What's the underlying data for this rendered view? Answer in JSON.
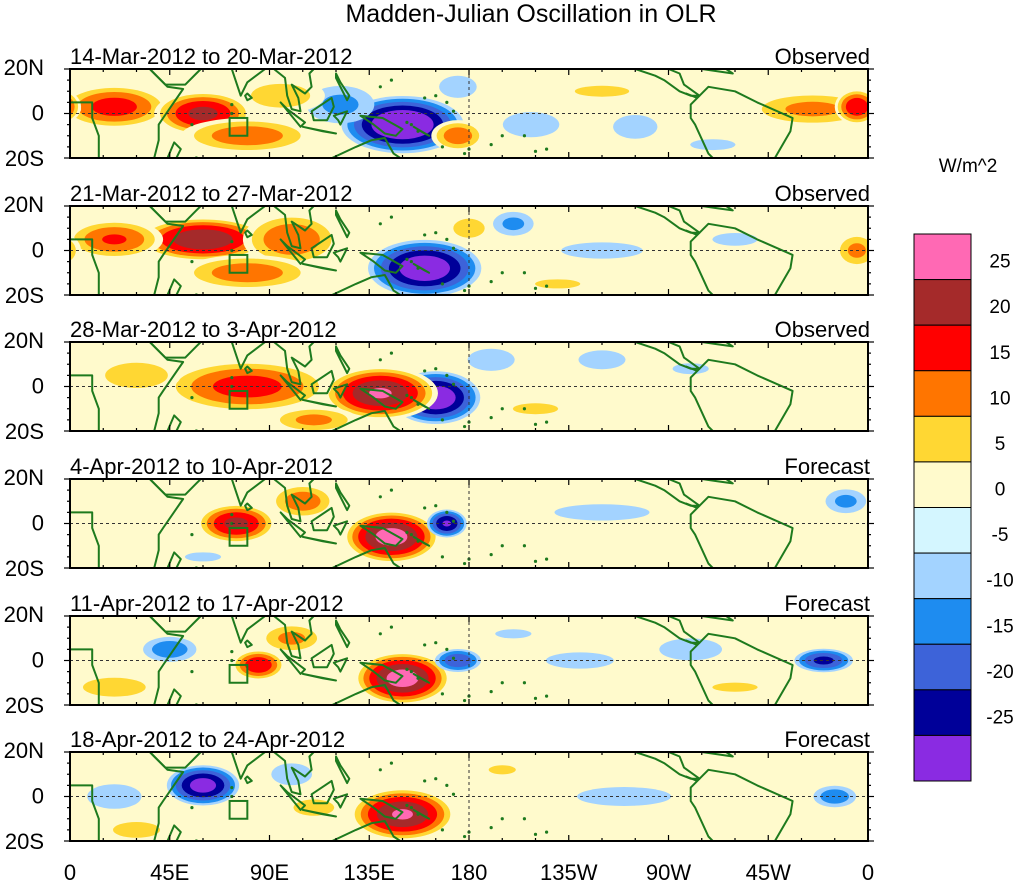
{
  "title": "Madden-Julian Oscillation in OLR",
  "units": "W/m^2",
  "panels": [
    {
      "period": "14-Mar-2012 to 20-Mar-2012",
      "kind": "Observed"
    },
    {
      "period": "21-Mar-2012 to 27-Mar-2012",
      "kind": "Observed"
    },
    {
      "period": "28-Mar-2012 to 3-Apr-2012",
      "kind": "Observed"
    },
    {
      "period": "4-Apr-2012 to 10-Apr-2012",
      "kind": "Forecast"
    },
    {
      "period": "11-Apr-2012 to 17-Apr-2012",
      "kind": "Forecast"
    },
    {
      "period": "18-Apr-2012 to 24-Apr-2012",
      "kind": "Forecast"
    }
  ],
  "lat_labels": [
    "20N",
    "0",
    "20S"
  ],
  "lon_labels": [
    "0",
    "45E",
    "90E",
    "135E",
    "180",
    "135W",
    "90W",
    "45W",
    "0"
  ],
  "colorbar": {
    "labels": [
      "25",
      "20",
      "15",
      "10",
      "5",
      "0",
      "-5",
      "-10",
      "-15",
      "-20",
      "-25"
    ],
    "colors": [
      "#ff69b4",
      "#a52a2a",
      "#ff0000",
      "#ff7500",
      "#ffd733",
      "#fffacc",
      "#d4f6ff",
      "#a3d3ff",
      "#1e8cf0",
      "#3d63d9",
      "#000099",
      "#8a2be2"
    ]
  },
  "colors": {
    "land_outline": "#1e7a1e",
    "frame": "#000000",
    "reference_line": "#333333"
  },
  "anomalies": [
    [
      {
        "lon": 150,
        "lat": -5,
        "v": -32,
        "rx": 30,
        "ry": 14
      },
      {
        "lon": 122,
        "lat": 4,
        "v": -12,
        "rx": 20,
        "ry": 11
      },
      {
        "lon": 175,
        "lat": 12,
        "v": -10,
        "rx": 12,
        "ry": 7
      },
      {
        "lon": 20,
        "lat": 3,
        "v": 18,
        "rx": 25,
        "ry": 10
      },
      {
        "lon": 60,
        "lat": 0,
        "v": 22,
        "rx": 22,
        "ry": 10
      },
      {
        "lon": 80,
        "lat": -10,
        "v": 14,
        "rx": 30,
        "ry": 8
      },
      {
        "lon": 95,
        "lat": 8,
        "v": 9,
        "rx": 20,
        "ry": 8
      },
      {
        "lon": 175,
        "lat": -10,
        "v": 14,
        "rx": 12,
        "ry": 7
      },
      {
        "lon": 208,
        "lat": -5,
        "v": -10,
        "rx": 18,
        "ry": 8
      },
      {
        "lon": 255,
        "lat": -6,
        "v": -9,
        "rx": 15,
        "ry": 8
      },
      {
        "lon": 335,
        "lat": 2,
        "v": 12,
        "rx": 30,
        "ry": 8
      },
      {
        "lon": 355,
        "lat": 3,
        "v": 20,
        "rx": 10,
        "ry": 8
      },
      {
        "lon": 240,
        "lat": 10,
        "v": 6,
        "rx": 30,
        "ry": 6
      },
      {
        "lon": 290,
        "lat": -14,
        "v": -6,
        "rx": 25,
        "ry": 6
      }
    ],
    [
      {
        "lon": 160,
        "lat": -8,
        "v": -30,
        "rx": 28,
        "ry": 14
      },
      {
        "lon": 200,
        "lat": 12,
        "v": -12,
        "rx": 12,
        "ry": 7
      },
      {
        "lon": 60,
        "lat": 5,
        "v": 25,
        "rx": 30,
        "ry": 10
      },
      {
        "lon": 20,
        "lat": 5,
        "v": 16,
        "rx": 22,
        "ry": 9
      },
      {
        "lon": 100,
        "lat": 5,
        "v": 15,
        "rx": 22,
        "ry": 12
      },
      {
        "lon": 80,
        "lat": -10,
        "v": 14,
        "rx": 30,
        "ry": 8
      },
      {
        "lon": 180,
        "lat": 10,
        "v": 10,
        "rx": 10,
        "ry": 6
      },
      {
        "lon": 240,
        "lat": 0,
        "v": -8,
        "rx": 30,
        "ry": 6
      },
      {
        "lon": 300,
        "lat": 5,
        "v": -6,
        "rx": 25,
        "ry": 7
      },
      {
        "lon": 355,
        "lat": 0,
        "v": 12,
        "rx": 10,
        "ry": 8
      },
      {
        "lon": 220,
        "lat": -15,
        "v": 6,
        "rx": 25,
        "ry": 5
      }
    ],
    [
      {
        "lon": 165,
        "lat": -5,
        "v": -30,
        "rx": 22,
        "ry": 13
      },
      {
        "lon": 140,
        "lat": -3,
        "v": 26,
        "rx": 26,
        "ry": 12
      },
      {
        "lon": 80,
        "lat": 0,
        "v": 18,
        "rx": 38,
        "ry": 12
      },
      {
        "lon": 30,
        "lat": 5,
        "v": 10,
        "rx": 20,
        "ry": 8
      },
      {
        "lon": 190,
        "lat": 12,
        "v": -10,
        "rx": 15,
        "ry": 7
      },
      {
        "lon": 240,
        "lat": 12,
        "v": -10,
        "rx": 15,
        "ry": 6
      },
      {
        "lon": 280,
        "lat": 8,
        "v": -6,
        "rx": 20,
        "ry": 6
      },
      {
        "lon": 210,
        "lat": -10,
        "v": 6,
        "rx": 25,
        "ry": 6
      },
      {
        "lon": 330,
        "lat": -8,
        "v": 5,
        "rx": 25,
        "ry": 6
      },
      {
        "lon": 110,
        "lat": -15,
        "v": 12,
        "rx": 20,
        "ry": 6
      }
    ],
    [
      {
        "lon": 145,
        "lat": -6,
        "v": 28,
        "rx": 22,
        "ry": 12
      },
      {
        "lon": 170,
        "lat": 0,
        "v": -26,
        "rx": 10,
        "ry": 7
      },
      {
        "lon": 75,
        "lat": 0,
        "v": 22,
        "rx": 18,
        "ry": 9
      },
      {
        "lon": 105,
        "lat": 10,
        "v": 14,
        "rx": 15,
        "ry": 8
      },
      {
        "lon": 30,
        "lat": -5,
        "v": 5,
        "rx": 25,
        "ry": 8
      },
      {
        "lon": 240,
        "lat": 5,
        "v": -8,
        "rx": 35,
        "ry": 6
      },
      {
        "lon": 300,
        "lat": 10,
        "v": -5,
        "rx": 20,
        "ry": 6
      },
      {
        "lon": 350,
        "lat": 10,
        "v": -12,
        "rx": 12,
        "ry": 7
      },
      {
        "lon": 60,
        "lat": -15,
        "v": -6,
        "rx": 20,
        "ry": 5
      },
      {
        "lon": 200,
        "lat": -12,
        "v": -5,
        "rx": 25,
        "ry": 5
      },
      {
        "lon": 320,
        "lat": -12,
        "v": 5,
        "rx": 30,
        "ry": 5
      }
    ],
    [
      {
        "lon": 150,
        "lat": -8,
        "v": 28,
        "rx": 22,
        "ry": 12
      },
      {
        "lon": 85,
        "lat": -2,
        "v": 20,
        "rx": 12,
        "ry": 7
      },
      {
        "lon": 100,
        "lat": 10,
        "v": 12,
        "rx": 15,
        "ry": 7
      },
      {
        "lon": 45,
        "lat": 5,
        "v": -14,
        "rx": 15,
        "ry": 7
      },
      {
        "lon": 175,
        "lat": 0,
        "v": -20,
        "rx": 12,
        "ry": 6
      },
      {
        "lon": 340,
        "lat": 0,
        "v": -22,
        "rx": 15,
        "ry": 6
      },
      {
        "lon": 280,
        "lat": 5,
        "v": -10,
        "rx": 20,
        "ry": 7
      },
      {
        "lon": 230,
        "lat": 0,
        "v": -8,
        "rx": 25,
        "ry": 6
      },
      {
        "lon": 20,
        "lat": -12,
        "v": 10,
        "rx": 20,
        "ry": 6
      },
      {
        "lon": 200,
        "lat": 12,
        "v": -6,
        "rx": 20,
        "ry": 5
      },
      {
        "lon": 300,
        "lat": -12,
        "v": 6,
        "rx": 25,
        "ry": 5
      }
    ],
    [
      {
        "lon": 150,
        "lat": -8,
        "v": 26,
        "rx": 24,
        "ry": 12
      },
      {
        "lon": 60,
        "lat": 5,
        "v": -28,
        "rx": 18,
        "ry": 10
      },
      {
        "lon": 20,
        "lat": 0,
        "v": -8,
        "rx": 20,
        "ry": 9
      },
      {
        "lon": 100,
        "lat": 10,
        "v": -8,
        "rx": 15,
        "ry": 8
      },
      {
        "lon": 110,
        "lat": -5,
        "v": 8,
        "rx": 15,
        "ry": 6
      },
      {
        "lon": 250,
        "lat": 0,
        "v": -10,
        "rx": 30,
        "ry": 6
      },
      {
        "lon": 345,
        "lat": 0,
        "v": -14,
        "rx": 12,
        "ry": 6
      },
      {
        "lon": 195,
        "lat": 12,
        "v": 6,
        "rx": 15,
        "ry": 5
      },
      {
        "lon": 30,
        "lat": -15,
        "v": 10,
        "rx": 15,
        "ry": 5
      }
    ]
  ]
}
